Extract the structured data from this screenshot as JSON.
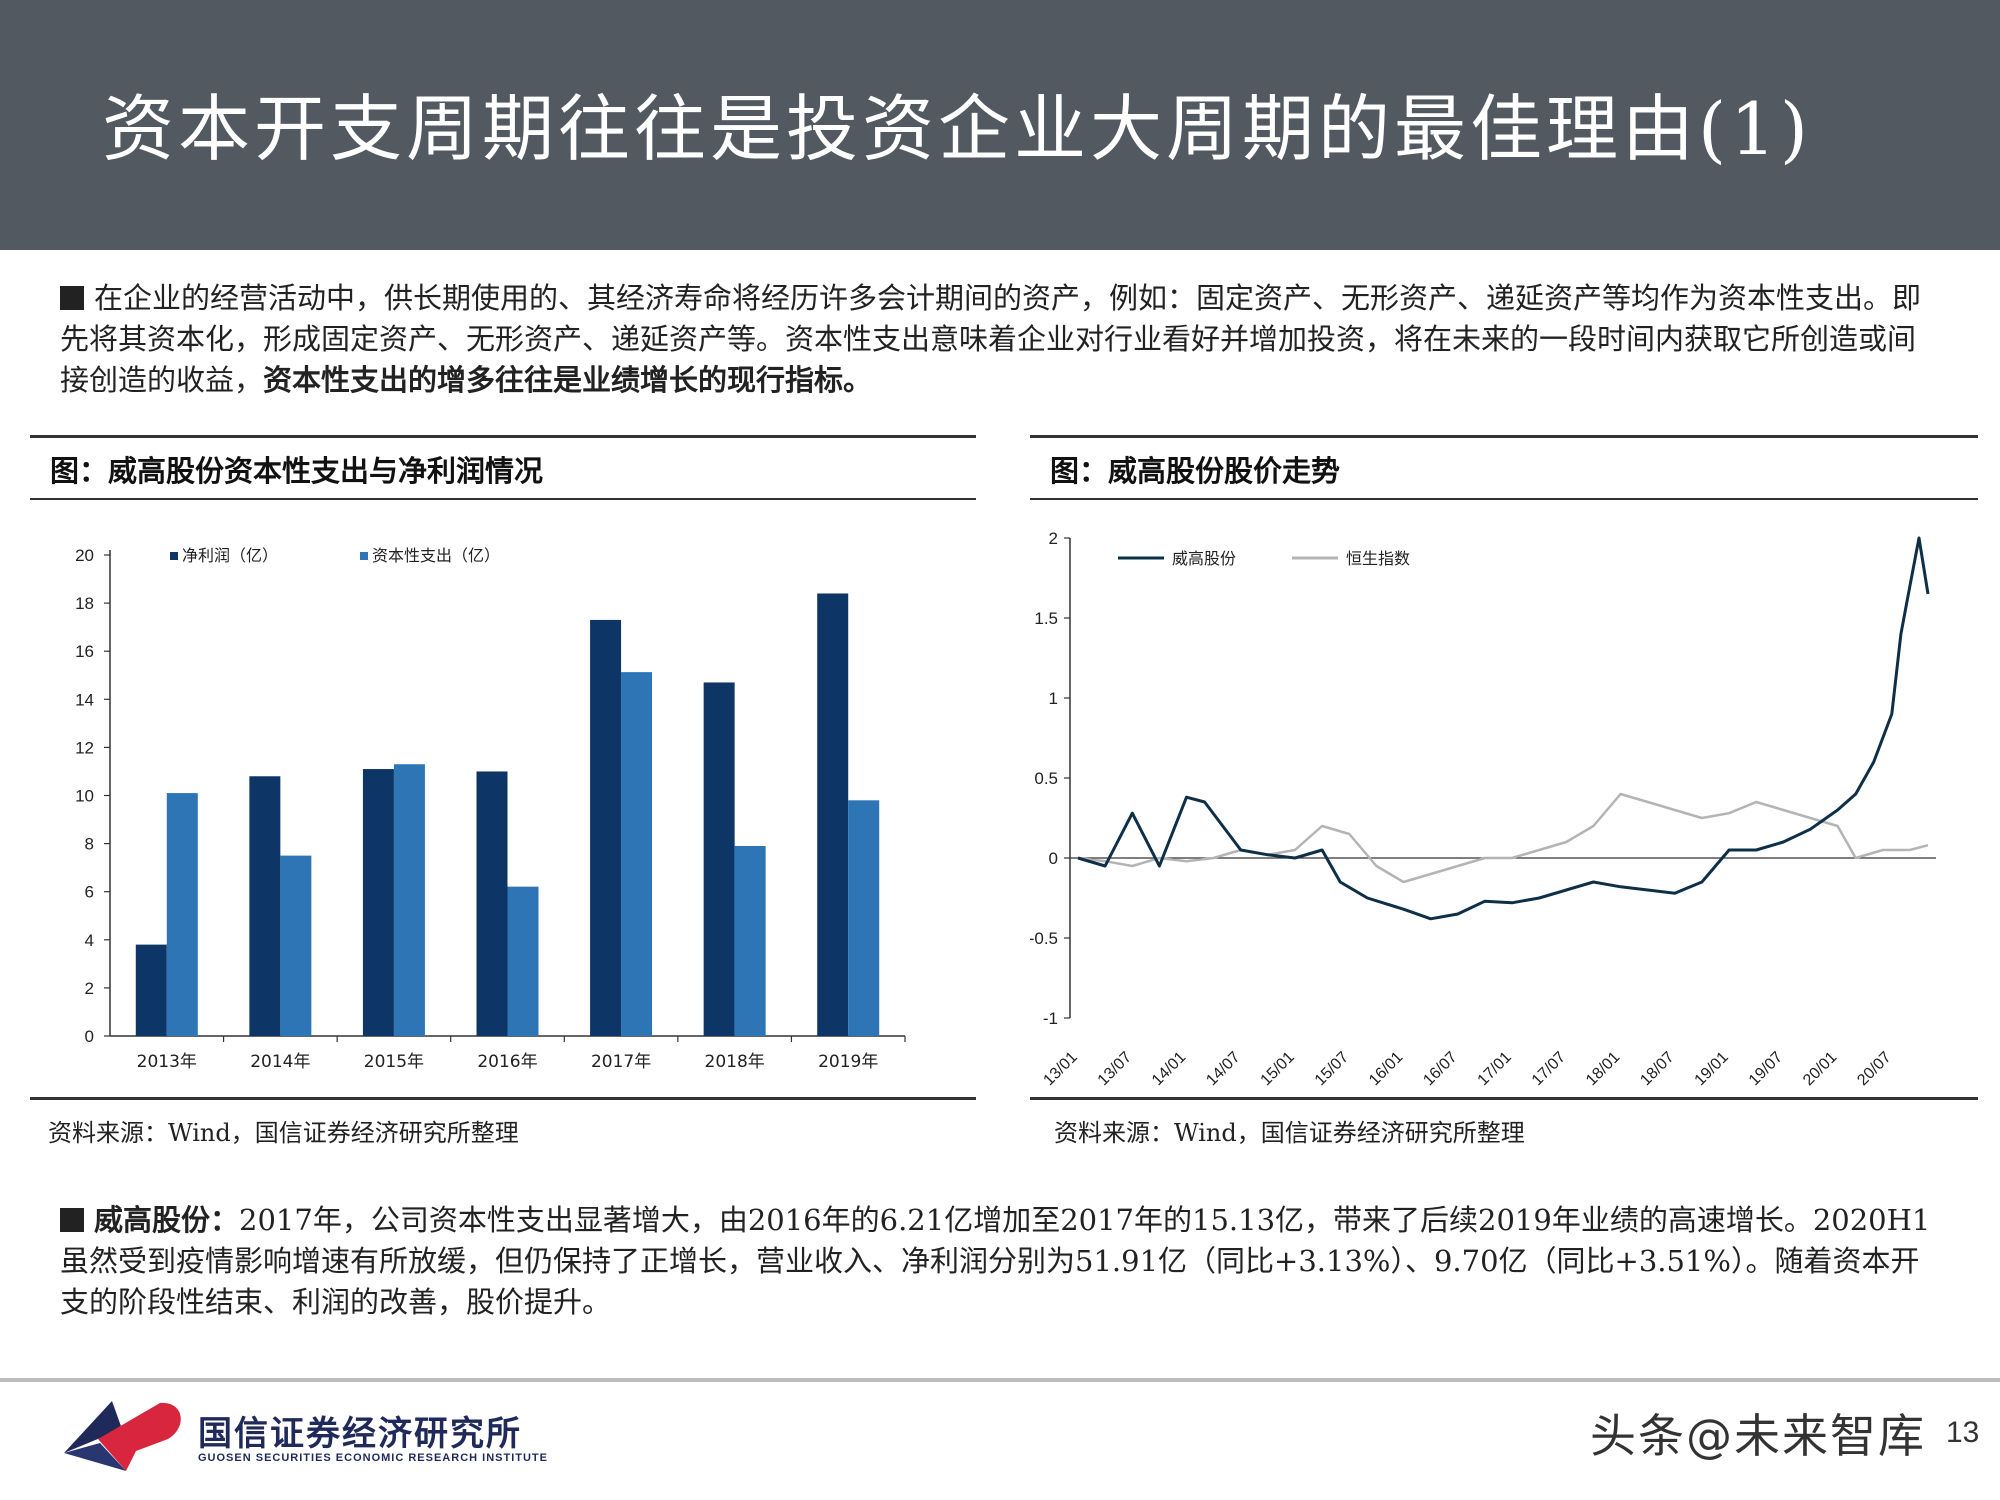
{
  "header": {
    "title": "资本开支周期往往是投资企业大周期的最佳理由(1)"
  },
  "intro": {
    "text": "在企业的经营活动中，供长期使用的、其经济寿命将经历许多会计期间的资产，例如：固定资产、无形资产、递延资产等均作为资本性支出。即先将其资本化，形成固定资产、无形资产、递延资产等。资本性支出意味着企业对行业看好并增加投资，将在未来的一段时间内获取它所创造或间接创造的收益，",
    "bold": "资本性支出的增多往往是业绩增长的现行指标。"
  },
  "left_panel": {
    "title": "图：威高股份资本性支出与净利润情况",
    "source": "资料来源：Wind，国信证券经济研究所整理"
  },
  "right_panel": {
    "title": "图：威高股份股价走势",
    "source": "资料来源：Wind，国信证券经济研究所整理"
  },
  "conclusion": {
    "bold": "威高股份：",
    "text": "2017年，公司资本性支出显著增大，由2016年的6.21亿增加至2017年的15.13亿，带来了后续2019年业绩的高速增长。2020H1虽然受到疫情影响增速有所放缓，但仍保持了正增长，营业收入、净利润分别为51.91亿（同比+3.13%）、9.70亿（同比+3.51%）。随着资本开支的阶段性结束、利润的改善，股价提升。"
  },
  "footer": {
    "logo_cn": "国信证券经济研究所",
    "logo_en": "GUOSEN SECURITIES ECONOMIC RESEARCH INSTITUTE",
    "watermark": "头条@未来智库",
    "page": "13"
  },
  "colors": {
    "header_bg": "#525960",
    "series_dark": "#0d3566",
    "series_light": "#2e75b6",
    "line_dark": "#0e2f48",
    "line_gray": "#b4b4b4"
  },
  "chart_data": [
    {
      "type": "bar",
      "categories": [
        "2013年",
        "2014年",
        "2015年",
        "2016年",
        "2017年",
        "2018年",
        "2019年"
      ],
      "series": [
        {
          "name": "净利润（亿）",
          "values": [
            3.8,
            10.8,
            11.1,
            11.0,
            17.3,
            14.7,
            18.4
          ]
        },
        {
          "name": "资本性支出（亿）",
          "values": [
            10.1,
            7.5,
            11.3,
            6.21,
            15.13,
            7.9,
            9.8
          ]
        }
      ],
      "yticks": [
        "0",
        "2",
        "4",
        "6",
        "8",
        "10",
        "12",
        "14",
        "16",
        "18",
        "20"
      ],
      "ylim": [
        0,
        20
      ],
      "legend_position": "top-left",
      "grid": false
    },
    {
      "type": "line",
      "xticks": [
        "13/01",
        "13/07",
        "14/01",
        "14/07",
        "15/01",
        "15/07",
        "16/01",
        "16/07",
        "17/01",
        "17/07",
        "18/01",
        "18/07",
        "19/01",
        "19/07",
        "20/01",
        "20/07"
      ],
      "yticks": [
        "2",
        "1.5",
        "1",
        "0.5",
        "0",
        "-0.5",
        "-1"
      ],
      "ylim": [
        -1,
        2
      ],
      "legend_position": "top-left",
      "grid": false,
      "series": [
        {
          "name": "威高股份",
          "x": [
            "13/01",
            "13/04",
            "13/07",
            "13/10",
            "14/01",
            "14/03",
            "14/05",
            "14/07",
            "14/10",
            "15/01",
            "15/04",
            "15/06",
            "15/09",
            "16/01",
            "16/04",
            "16/07",
            "16/10",
            "17/01",
            "17/04",
            "17/07",
            "17/10",
            "18/01",
            "18/04",
            "18/07",
            "18/10",
            "19/01",
            "19/04",
            "19/07",
            "19/10",
            "20/01",
            "20/03",
            "20/05",
            "20/07",
            "20/08",
            "20/09",
            "20/10",
            "20/11"
          ],
          "values": [
            0.0,
            -0.05,
            0.28,
            -0.05,
            0.38,
            0.35,
            0.2,
            0.05,
            0.02,
            0.0,
            0.05,
            -0.15,
            -0.25,
            -0.32,
            -0.38,
            -0.35,
            -0.27,
            -0.28,
            -0.25,
            -0.2,
            -0.15,
            -0.18,
            -0.2,
            -0.22,
            -0.15,
            0.05,
            0.05,
            0.1,
            0.18,
            0.3,
            0.4,
            0.6,
            0.9,
            1.4,
            1.7,
            2.0,
            1.65
          ]
        },
        {
          "name": "恒生指数",
          "x": [
            "13/01",
            "13/04",
            "13/07",
            "13/10",
            "14/01",
            "14/04",
            "14/07",
            "14/10",
            "15/01",
            "15/04",
            "15/07",
            "15/10",
            "16/01",
            "16/04",
            "16/07",
            "16/10",
            "17/01",
            "17/04",
            "17/07",
            "17/10",
            "18/01",
            "18/04",
            "18/07",
            "18/10",
            "19/01",
            "19/04",
            "19/07",
            "19/10",
            "20/01",
            "20/03",
            "20/06",
            "20/09",
            "20/11"
          ],
          "values": [
            0.0,
            -0.02,
            -0.05,
            0.0,
            -0.02,
            0.0,
            0.05,
            0.02,
            0.05,
            0.2,
            0.15,
            -0.05,
            -0.15,
            -0.1,
            -0.05,
            0.0,
            0.0,
            0.05,
            0.1,
            0.2,
            0.4,
            0.35,
            0.3,
            0.25,
            0.28,
            0.35,
            0.3,
            0.25,
            0.2,
            0.0,
            0.05,
            0.05,
            0.08
          ]
        }
      ]
    }
  ]
}
